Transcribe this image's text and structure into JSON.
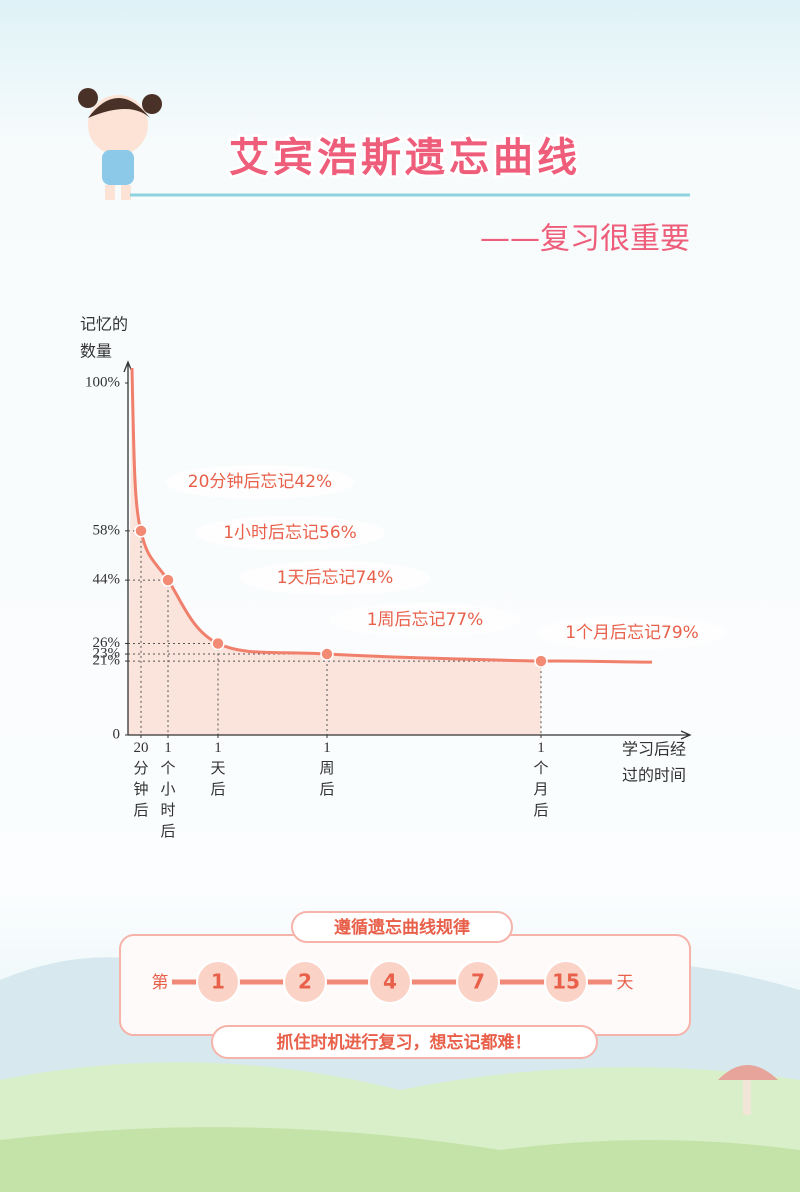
{
  "header": {
    "title": "艾宾浩斯遗忘曲线",
    "subtitle": "——复习很重要"
  },
  "chart_data": {
    "type": "line",
    "ylabel_lines": [
      "记忆的",
      "数量"
    ],
    "xlabel_lines": [
      "学习后经",
      "过的时间"
    ],
    "categories": [
      "20分钟后",
      "1个小时后",
      "1天后",
      "1周后",
      "1个月后"
    ],
    "values": [
      58,
      44,
      26,
      23,
      21
    ],
    "annotations": [
      "20分钟后忘记42%",
      "1小时后忘记56%",
      "1天后忘记74%",
      "1周后忘记77%",
      "1个月后忘记79%"
    ],
    "color": "#f07f6c",
    "ylim": [
      0,
      100
    ],
    "yticks": [
      0,
      {
        "value": 21,
        "label": "21%"
      },
      {
        "value": 23,
        "label": "23%"
      },
      {
        "value": 26,
        "label": "26%"
      },
      {
        "value": 44,
        "label": "44%"
      },
      {
        "value": 58,
        "label": "58%"
      },
      {
        "value": 100,
        "label": "100%"
      }
    ]
  },
  "review": {
    "title": "遵循遗忘曲线规律",
    "prefix": "第",
    "days": [
      1,
      2,
      4,
      7,
      15
    ],
    "suffix": "天",
    "slogan": "抓住时机进行复习，想忘记都难！"
  }
}
